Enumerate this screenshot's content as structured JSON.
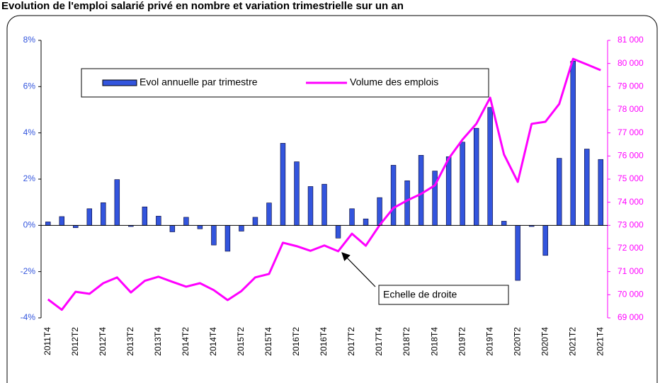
{
  "chart_data": {
    "type": "bar",
    "title": "Evolution de l'emploi salarié privé en nombre et variation trimestrielle sur un an",
    "annotation": "Echelle de droite",
    "categories": [
      "2011T4",
      null,
      "2012T2",
      null,
      "2012T4",
      null,
      "2013T2",
      null,
      "2013T4",
      null,
      "2014T2",
      null,
      "2014T4",
      null,
      "2015T2",
      null,
      "2015T4",
      null,
      "2016T2",
      null,
      "2016T4",
      null,
      "2017T2",
      null,
      "2017T4",
      null,
      "2018T2",
      null,
      "2018T4",
      null,
      "2019T2",
      null,
      "2019T4",
      null,
      "2020T2",
      null,
      "2020T4",
      null,
      "2021T2",
      null,
      "2021T4"
    ],
    "series": [
      {
        "name": "Evol annuelle par trimestre",
        "type": "bar",
        "color": "#3355dd",
        "axis": "y",
        "values": [
          0.15,
          0.38,
          -0.1,
          0.72,
          0.98,
          1.98,
          -0.05,
          0.8,
          0.4,
          -0.28,
          0.35,
          -0.15,
          -0.85,
          -1.12,
          -0.25,
          0.35,
          0.97,
          3.55,
          2.75,
          1.68,
          1.78,
          -0.55,
          0.72,
          0.28,
          1.2,
          2.6,
          1.93,
          3.03,
          2.35,
          2.97,
          3.6,
          4.2,
          5.1,
          0.18,
          -2.38,
          -0.05,
          -1.3,
          2.9,
          7.1,
          3.3,
          2.85
        ]
      },
      {
        "name": "Volume des emplois",
        "type": "line",
        "color": "#ff00ff",
        "axis": "y2",
        "values": [
          69800,
          69350,
          70130,
          70040,
          70500,
          70750,
          70100,
          70600,
          70780,
          70560,
          70350,
          70500,
          70200,
          69770,
          70160,
          70750,
          70900,
          72250,
          72100,
          71900,
          72130,
          71880,
          72640,
          72120,
          73010,
          73750,
          74080,
          74360,
          74730,
          75890,
          76710,
          77390,
          78520,
          76070,
          74880,
          77390,
          77480,
          78250,
          80200,
          79960,
          79710
        ]
      }
    ],
    "ylim": [
      -4,
      8
    ],
    "yticks": [
      {
        "value": -4,
        "label": "-4%"
      },
      {
        "value": -2,
        "label": "-2%"
      },
      {
        "value": 0,
        "label": "0%"
      },
      {
        "value": 2,
        "label": "2%"
      },
      {
        "value": 4,
        "label": "4%"
      },
      {
        "value": 6,
        "label": "6%"
      },
      {
        "value": 8,
        "label": "8%"
      }
    ],
    "y2lim": [
      69000,
      81000
    ],
    "y2ticks": [
      {
        "value": 69000,
        "label": "69 000"
      },
      {
        "value": 70000,
        "label": "70 000"
      },
      {
        "value": 71000,
        "label": "71 000"
      },
      {
        "value": 72000,
        "label": "72 000"
      },
      {
        "value": 73000,
        "label": "73 000"
      },
      {
        "value": 74000,
        "label": "74 000"
      },
      {
        "value": 75000,
        "label": "75 000"
      },
      {
        "value": 76000,
        "label": "76 000"
      },
      {
        "value": 77000,
        "label": "77 000"
      },
      {
        "value": 78000,
        "label": "78 000"
      },
      {
        "value": 79000,
        "label": "79 000"
      },
      {
        "value": 80000,
        "label": "80 000"
      },
      {
        "value": 81000,
        "label": "81 000"
      }
    ],
    "legend": "top-left",
    "grid": false
  }
}
